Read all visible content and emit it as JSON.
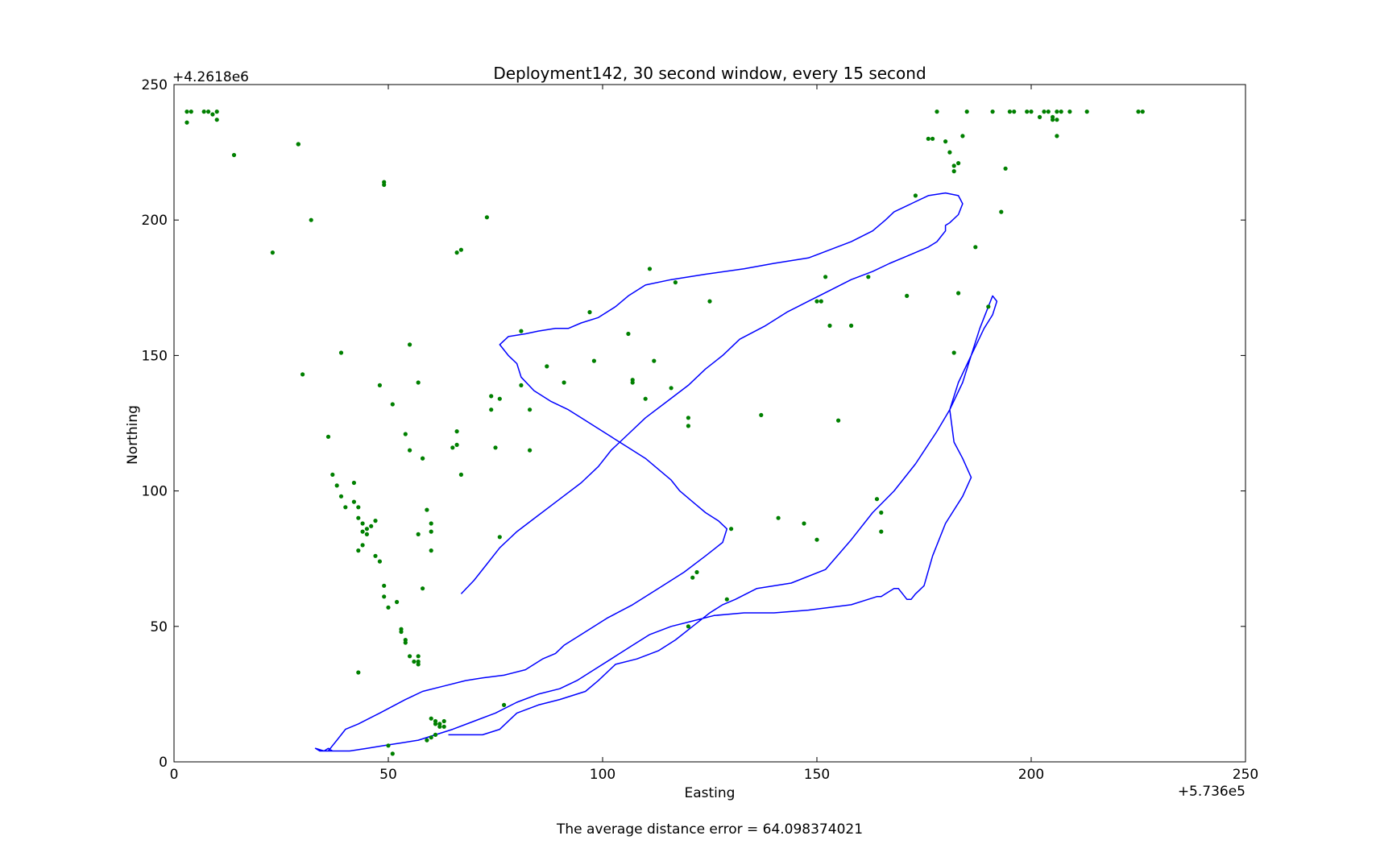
{
  "chart_data": {
    "type": "scatter",
    "title": "Deployment142, 30 second window, every 15 second",
    "xlabel": "Easting",
    "ylabel": "Northing",
    "x_offset_label": "+5.736e5",
    "y_offset_label": "+4.2618e6",
    "xlim": [
      0,
      250
    ],
    "ylim": [
      0,
      250
    ],
    "xticks": [
      "0",
      "50",
      "100",
      "150",
      "200",
      "250"
    ],
    "yticks": [
      "0",
      "50",
      "100",
      "150",
      "200",
      "250"
    ],
    "grid": false,
    "colors": {
      "track": "#0000ff",
      "points": "#008000"
    },
    "series": [
      {
        "style": "line",
        "color": "#0000ff",
        "x": [
          64,
          68,
          71,
          72,
          76,
          80,
          85,
          90,
          96,
          99,
          103,
          108,
          113,
          117,
          121,
          125,
          128,
          131,
          136,
          144,
          152,
          158,
          163,
          168,
          173,
          178,
          181,
          184,
          186,
          188,
          190,
          191,
          192,
          191,
          189,
          186,
          183,
          181,
          182,
          184,
          186,
          184,
          180,
          177,
          175,
          173,
          172,
          171,
          170,
          169,
          168,
          166,
          165,
          164,
          162,
          158,
          153,
          148,
          140,
          133,
          126,
          121,
          116,
          111,
          107,
          103,
          98,
          94,
          90,
          85,
          80,
          75,
          70,
          65,
          61,
          57,
          53,
          49,
          45,
          41,
          38,
          36,
          34,
          33,
          35,
          36,
          37,
          36,
          37,
          38,
          40,
          43,
          48,
          54,
          58,
          63,
          68,
          72,
          77,
          82,
          86,
          89,
          91,
          95,
          101,
          107,
          113,
          119,
          124,
          128,
          129,
          127,
          124,
          121,
          118,
          116,
          113,
          110,
          106,
          102,
          98,
          95,
          92,
          88,
          84,
          81,
          80,
          78,
          76,
          78,
          82,
          85,
          89,
          92,
          95,
          99,
          103,
          106,
          110,
          116,
          124,
          133,
          140,
          148,
          153,
          158,
          163,
          166,
          168,
          172,
          176,
          180,
          183,
          184,
          183,
          181,
          180,
          180,
          179,
          178,
          176,
          173,
          170,
          167,
          163,
          158,
          153,
          148,
          143,
          138,
          132,
          128,
          124,
          120,
          115,
          110,
          106,
          102,
          99,
          95,
          90,
          85,
          80,
          76,
          73,
          70,
          67
        ],
        "y": [
          10,
          10,
          10,
          10,
          12,
          18,
          21,
          23,
          26,
          30,
          36,
          38,
          41,
          45,
          50,
          55,
          58,
          60,
          64,
          66,
          71,
          82,
          92,
          100,
          110,
          122,
          130,
          140,
          150,
          160,
          168,
          172,
          170,
          165,
          160,
          150,
          140,
          130,
          118,
          112,
          105,
          98,
          88,
          76,
          65,
          62,
          60,
          60,
          62,
          64,
          64,
          62,
          61,
          61,
          60,
          58,
          57,
          56,
          55,
          55,
          54,
          52,
          50,
          47,
          43,
          39,
          34,
          30,
          27,
          25,
          22,
          18,
          15,
          12,
          10,
          8,
          7,
          6,
          5,
          4,
          4,
          4,
          4,
          5,
          4,
          5,
          4,
          4,
          6,
          8,
          12,
          14,
          18,
          23,
          26,
          28,
          30,
          31,
          32,
          34,
          38,
          40,
          43,
          47,
          53,
          58,
          64,
          70,
          76,
          81,
          86,
          89,
          92,
          96,
          100,
          104,
          108,
          112,
          116,
          120,
          124,
          127,
          130,
          133,
          137,
          142,
          147,
          150,
          154,
          157,
          158,
          159,
          160,
          160,
          162,
          164,
          168,
          172,
          176,
          178,
          180,
          182,
          184,
          186,
          189,
          192,
          196,
          200,
          203,
          206,
          209,
          210,
          209,
          206,
          202,
          199,
          198,
          196,
          194,
          192,
          190,
          188,
          186,
          184,
          181,
          178,
          174,
          170,
          166,
          161,
          156,
          150,
          145,
          139,
          133,
          127,
          121,
          115,
          109,
          103,
          97,
          91,
          85,
          79,
          73,
          67,
          62
        ]
      },
      {
        "style": "markers",
        "color": "#008000",
        "x": [
          3,
          4,
          3,
          7,
          8,
          9,
          10,
          10,
          14,
          29,
          23,
          32,
          30,
          36,
          39,
          38,
          39,
          40,
          37,
          42,
          42,
          43,
          43,
          44,
          45,
          44,
          45,
          46,
          47,
          44,
          43,
          47,
          48,
          49,
          49,
          50,
          52,
          53,
          54,
          54,
          55,
          56,
          57,
          57,
          57,
          58,
          58,
          59,
          60,
          60,
          60,
          61,
          61,
          62,
          62,
          63,
          63,
          61,
          60,
          59,
          50,
          51,
          53,
          49,
          49,
          43,
          48,
          51,
          55,
          57,
          54,
          55,
          57,
          58,
          60,
          65,
          66,
          66,
          67,
          67,
          73,
          74,
          75,
          77,
          74,
          76,
          81,
          81,
          83,
          87,
          91,
          97,
          98,
          106,
          107,
          107,
          110,
          111,
          112,
          116,
          117,
          120,
          120,
          121,
          125,
          137,
          120,
          122,
          129,
          130,
          141,
          147,
          150,
          151,
          150,
          153,
          155,
          152,
          158,
          162,
          164,
          165,
          165,
          171,
          173,
          176,
          177,
          178,
          180,
          181,
          182,
          182,
          183,
          184,
          185,
          187,
          183,
          182,
          191,
          190,
          193,
          194,
          195,
          196,
          199,
          200,
          202,
          204,
          205,
          205,
          206,
          206,
          207,
          209,
          213,
          203,
          206,
          225,
          226,
          76,
          83,
          29,
          66
        ],
        "y": [
          240,
          240,
          236,
          240,
          240,
          239,
          240,
          237,
          224,
          228,
          188,
          200,
          143,
          120,
          151,
          102,
          98,
          94,
          106,
          103,
          96,
          94,
          90,
          88,
          86,
          85,
          84,
          87,
          89,
          80,
          78,
          76,
          74,
          65,
          61,
          57,
          59,
          48,
          45,
          44,
          39,
          37,
          37,
          39,
          36,
          112,
          112,
          93,
          85,
          88,
          16,
          15,
          14,
          13,
          14,
          15,
          13,
          10,
          9,
          8,
          6,
          3,
          49,
          214,
          213,
          33,
          139,
          132,
          154,
          140,
          121,
          115,
          84,
          64,
          78,
          116,
          117,
          122,
          106,
          189,
          201,
          135,
          116,
          21,
          130,
          83,
          139,
          159,
          115,
          146,
          140,
          166,
          148,
          158,
          141,
          140,
          134,
          182,
          148,
          138,
          177,
          127,
          124,
          68,
          170,
          128,
          50,
          70,
          60,
          86,
          90,
          88,
          82,
          170,
          170,
          161,
          126,
          179,
          161,
          179,
          97,
          92,
          85,
          172,
          209,
          230,
          230,
          240,
          229,
          225,
          218,
          220,
          221,
          231,
          240,
          190,
          173,
          151,
          240,
          168,
          203,
          219,
          240,
          240,
          240,
          240,
          238,
          240,
          237,
          238,
          231,
          240,
          240,
          240,
          240,
          240,
          237,
          240,
          240,
          134,
          130,
          228,
          188
        ]
      }
    ],
    "annotation": "The average distance error = 64.098374021"
  }
}
